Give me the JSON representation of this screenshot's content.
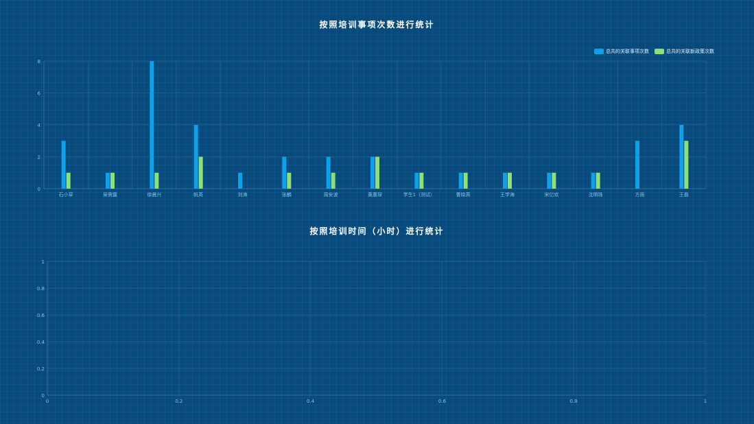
{
  "chart_data": [
    {
      "type": "bar",
      "title": "按照培训事项次数进行统计",
      "categories": [
        "石小草",
        "吴需露",
        "徐晨兴",
        "帆英",
        "刘涛",
        "张麟",
        "周安波",
        "黄惠琛",
        "学生1（测试）",
        "曹晓燕",
        "王学海",
        "宋亿欢",
        "沈明珠",
        "方雨",
        "王磊"
      ],
      "series": [
        {
          "name": "总共的关联事项次数",
          "color": "#0fa0ea",
          "values": [
            3,
            1,
            8,
            4,
            1,
            2,
            2,
            2,
            1,
            1,
            1,
            1,
            1,
            3,
            4
          ]
        },
        {
          "name": "总共的关联新政策次数",
          "color": "#8be07a",
          "values": [
            1,
            1,
            1,
            2,
            0,
            1,
            1,
            2,
            1,
            1,
            1,
            1,
            1,
            0,
            3
          ]
        }
      ],
      "ylim": [
        0,
        8
      ],
      "yticks": [
        "0",
        "2",
        "4",
        "6",
        "8"
      ],
      "grid": true,
      "legend_position": "top-right"
    },
    {
      "type": "line",
      "title": "按照培训时间（小时）进行统计",
      "x": [],
      "series": [],
      "xlim": [
        0,
        1
      ],
      "ylim": [
        0,
        1
      ],
      "xticks": [
        "0",
        "0.2",
        "0.4",
        "0.6",
        "0.8",
        "1"
      ],
      "yticks": [
        "0",
        "0.2",
        "0.4",
        "0.6",
        "0.8",
        "1"
      ],
      "grid": true
    }
  ],
  "colors": {
    "background": "#0a4a7a",
    "axis": "#2e6f9e",
    "grid": "#1e5f8e",
    "tick_label": "#7fc3ee"
  }
}
